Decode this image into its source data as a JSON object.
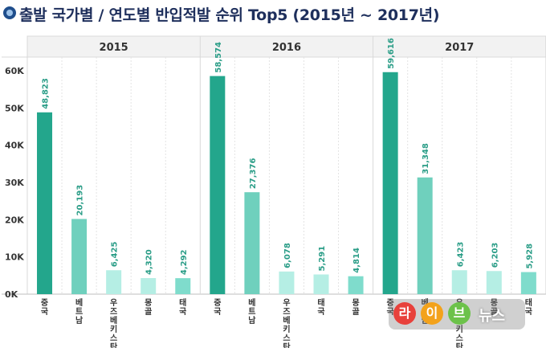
{
  "title": "출발 국가별 / 연도별 반입적발 순위 Top5 (2015년 ~ 2017년)",
  "colors": {
    "background": "#ffffff",
    "header_bg": "#f2f2f2",
    "grid": "#d9d9d9",
    "label": "#2a9d87",
    "rank_colors": [
      "#23a68c",
      "#6fd0bd",
      "#b5eee4",
      "#b5eee4",
      "#7fdccc"
    ]
  },
  "chart_data": {
    "type": "bar",
    "ylim": [
      0,
      60000
    ],
    "yticks": [
      0,
      10000,
      20000,
      30000,
      40000,
      50000,
      60000
    ],
    "ytick_labels": [
      "0K",
      "10K",
      "20K",
      "30K",
      "40K",
      "50K",
      "60K"
    ],
    "grid": true,
    "panels": [
      {
        "year": "2015",
        "categories": [
          "중국",
          "베트남",
          "우즈베키스탄",
          "몽골",
          "태국"
        ],
        "values": [
          48823,
          20193,
          6425,
          4320,
          4292
        ],
        "labels": [
          "48,823",
          "20,193",
          "6,425",
          "4,320",
          "4,292"
        ]
      },
      {
        "year": "2016",
        "categories": [
          "중국",
          "베트남",
          "우즈베키스탄",
          "태국",
          "몽골"
        ],
        "values": [
          58574,
          27376,
          6078,
          5291,
          4814
        ],
        "labels": [
          "58,574",
          "27,376",
          "6,078",
          "5,291",
          "4,814"
        ]
      },
      {
        "year": "2017",
        "categories": [
          "중국",
          "베트남",
          "우즈베키스탄",
          "몽골",
          "태국"
        ],
        "values": [
          59616,
          31348,
          6423,
          6203,
          5928
        ],
        "labels": [
          "59,616",
          "31,348",
          "6,423",
          "6,203",
          "5,928"
        ]
      }
    ]
  },
  "watermark": {
    "circles": [
      "라",
      "이",
      "브"
    ],
    "circle_colors": [
      "#e8413c",
      "#f3a21b",
      "#6cc24a"
    ],
    "text": "뉴스"
  }
}
